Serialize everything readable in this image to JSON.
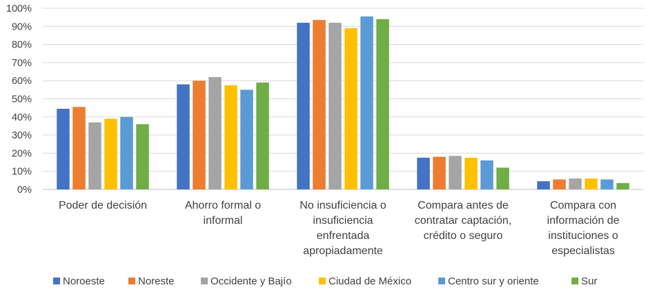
{
  "chart_data": {
    "type": "bar",
    "title": "",
    "xlabel": "",
    "ylabel": "",
    "ylim": [
      0,
      100
    ],
    "y_ticks": [
      "0%",
      "10%",
      "20%",
      "30%",
      "40%",
      "50%",
      "60%",
      "70%",
      "80%",
      "90%",
      "100%"
    ],
    "grid": true,
    "legend_position": "bottom",
    "categories": [
      [
        "Poder de decisión"
      ],
      [
        "Ahorro formal o",
        "informal"
      ],
      [
        "No insuficiencia o",
        "insuficiencia",
        "enfrentada",
        "apropiadamente"
      ],
      [
        "Compara antes de",
        "contratar captación,",
        "crédito o seguro"
      ],
      [
        "Compara con",
        "información de",
        "instituciones o",
        "especialistas"
      ]
    ],
    "series": [
      {
        "name": "Noroeste",
        "color": "#4472C4",
        "values": [
          44.5,
          58,
          92,
          17.5,
          4.5
        ]
      },
      {
        "name": "Noreste",
        "color": "#ED7D31",
        "values": [
          45.5,
          60,
          93.5,
          18,
          5.5
        ]
      },
      {
        "name": "Occidente y Bajío",
        "color": "#A5A5A5",
        "values": [
          37,
          62,
          92,
          18.5,
          6
        ]
      },
      {
        "name": "Ciudad de México",
        "color": "#FFC000",
        "values": [
          39,
          57.5,
          89,
          17.5,
          6
        ]
      },
      {
        "name": "Centro sur y oriente",
        "color": "#5B9BD5",
        "values": [
          40,
          55,
          95.5,
          16,
          5.5
        ]
      },
      {
        "name": "Sur",
        "color": "#70AD47",
        "values": [
          36,
          59,
          94,
          12,
          3.5
        ]
      }
    ]
  }
}
